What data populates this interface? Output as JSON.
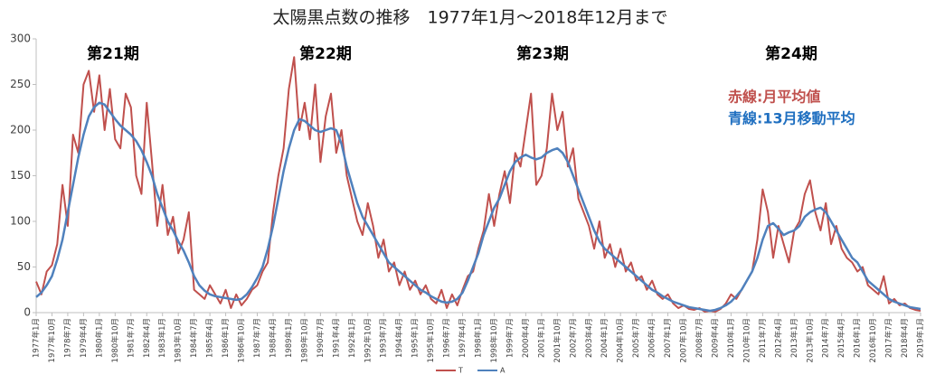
{
  "chart_data": {
    "type": "line",
    "title": "太陽黒点数の推移　1977年1月～2018年12月まで",
    "annotations": [
      "第21期",
      "第22期",
      "第23期",
      "第24期",
      "赤線:月平均値",
      "青線:13月移動平均"
    ],
    "categories": [
      "1977年1月",
      null,
      null,
      "1977年10月",
      null,
      null,
      "1978年7月",
      null,
      null,
      "1979年4月",
      null,
      null,
      "1980年1月",
      null,
      null,
      "1980年10月",
      null,
      null,
      "1981年7月",
      null,
      null,
      "1982年4月",
      null,
      null,
      "1983年1月",
      null,
      null,
      "1983年10月",
      null,
      null,
      "1984年7月",
      null,
      null,
      "1985年4月",
      null,
      null,
      "1986年1月",
      null,
      null,
      "1986年10月",
      null,
      null,
      "1987年7月",
      null,
      null,
      "1988年4月",
      null,
      null,
      "1989年1月",
      null,
      null,
      "1989年10月",
      null,
      null,
      "1990年7月",
      null,
      null,
      "1991年4月",
      null,
      null,
      "1992年1月",
      null,
      null,
      "1992年10月",
      null,
      null,
      "1993年7月",
      null,
      null,
      "1994年4月",
      null,
      null,
      "1995年1月",
      null,
      null,
      "1995年10月",
      null,
      null,
      "1996年7月",
      null,
      null,
      "1997年4月",
      null,
      null,
      "1998年1月",
      null,
      null,
      "1998年10月",
      null,
      null,
      "1999年7月",
      null,
      null,
      "2000年4月",
      null,
      null,
      "2001年1月",
      null,
      null,
      "2001年10月",
      null,
      null,
      "2002年7月",
      null,
      null,
      "2003年4月",
      null,
      null,
      "2004年1月",
      null,
      null,
      "2004年10月",
      null,
      null,
      "2005年7月",
      null,
      null,
      "2006年4月",
      null,
      null,
      "2007年1月",
      null,
      null,
      "2007年10月",
      null,
      null,
      "2008年7月",
      null,
      null,
      "2009年4月",
      null,
      null,
      "2010年1月",
      null,
      null,
      "2010年10月",
      null,
      null,
      "2011年7月",
      null,
      null,
      "2012年4月",
      null,
      null,
      "2013年1月",
      null,
      null,
      "2013年10月",
      null,
      null,
      "2014年7月",
      null,
      null,
      "2015年4月",
      null,
      null,
      "2016年1月",
      null,
      null,
      "2016年10月",
      null,
      null,
      "2017年7月",
      null,
      null,
      "2018年4月",
      null,
      null,
      "2019年1月"
    ],
    "series": [
      {
        "name": "T",
        "color": "#c0504d",
        "values": [
          34,
          20,
          45,
          52,
          75,
          140,
          95,
          195,
          175,
          250,
          265,
          220,
          260,
          200,
          245,
          190,
          180,
          240,
          225,
          150,
          130,
          230,
          165,
          95,
          140,
          85,
          105,
          65,
          80,
          110,
          25,
          20,
          15,
          30,
          20,
          10,
          25,
          5,
          20,
          8,
          15,
          25,
          30,
          45,
          55,
          110,
          150,
          180,
          245,
          280,
          200,
          230,
          190,
          250,
          165,
          215,
          240,
          175,
          200,
          150,
          125,
          100,
          85,
          120,
          95,
          60,
          80,
          45,
          55,
          30,
          45,
          25,
          35,
          20,
          30,
          15,
          10,
          25,
          5,
          20,
          8,
          25,
          40,
          45,
          70,
          90,
          130,
          95,
          130,
          155,
          120,
          175,
          160,
          200,
          240,
          140,
          150,
          180,
          240,
          200,
          220,
          160,
          180,
          125,
          110,
          95,
          70,
          100,
          60,
          75,
          50,
          70,
          45,
          55,
          35,
          40,
          25,
          35,
          20,
          15,
          20,
          10,
          5,
          8,
          4,
          3,
          5,
          1,
          2,
          1,
          4,
          10,
          20,
          15,
          25,
          35,
          45,
          80,
          135,
          110,
          60,
          95,
          75,
          55,
          90,
          100,
          130,
          145,
          110,
          90,
          120,
          75,
          95,
          70,
          60,
          55,
          45,
          50,
          30,
          25,
          20,
          40,
          10,
          15,
          8,
          10,
          5,
          3,
          2
        ]
      },
      {
        "name": "A",
        "color": "#4f81bd",
        "values": [
          17,
          22,
          30,
          40,
          58,
          80,
          110,
          140,
          170,
          195,
          215,
          225,
          230,
          228,
          220,
          212,
          205,
          200,
          195,
          188,
          178,
          165,
          150,
          130,
          115,
          100,
          90,
          78,
          68,
          55,
          40,
          30,
          24,
          20,
          18,
          17,
          16,
          15,
          14,
          15,
          20,
          28,
          38,
          50,
          70,
          95,
          125,
          155,
          180,
          200,
          212,
          210,
          205,
          200,
          198,
          200,
          202,
          200,
          185,
          160,
          140,
          120,
          105,
          95,
          85,
          75,
          65,
          55,
          50,
          45,
          40,
          35,
          30,
          25,
          22,
          18,
          15,
          12,
          11,
          12,
          15,
          22,
          35,
          50,
          65,
          85,
          100,
          115,
          125,
          140,
          155,
          165,
          170,
          173,
          170,
          168,
          170,
          175,
          178,
          180,
          175,
          165,
          150,
          135,
          120,
          105,
          90,
          78,
          70,
          65,
          60,
          55,
          50,
          45,
          40,
          35,
          30,
          25,
          22,
          18,
          15,
          12,
          10,
          8,
          6,
          5,
          4,
          3,
          2,
          3,
          5,
          8,
          12,
          18,
          25,
          35,
          45,
          60,
          80,
          95,
          98,
          92,
          85,
          88,
          90,
          95,
          105,
          110,
          113,
          115,
          110,
          100,
          90,
          80,
          70,
          60,
          55,
          45,
          35,
          30,
          25,
          20,
          15,
          12,
          10,
          8,
          6,
          5,
          4
        ]
      }
    ],
    "ylim": [
      0,
      300
    ],
    "yticks": [
      0,
      50,
      100,
      150,
      200,
      250,
      300
    ],
    "grid": false
  }
}
